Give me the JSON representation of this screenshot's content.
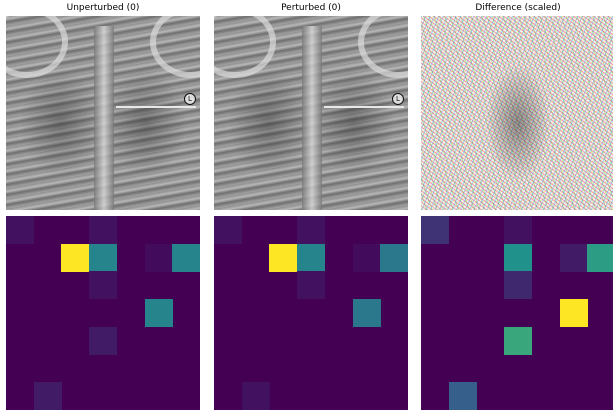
{
  "titles": {
    "unperturbed": "Unperturbed (0)",
    "perturbed": "Perturbed (0)",
    "difference": "Difference (scaled)"
  },
  "xray_marker": "L",
  "grid_size": 7,
  "colormap": {
    "low": "#440154",
    "mid_low": "#3b528b",
    "mid": "#21918c",
    "mid_high": "#22a884",
    "high": "#fde725"
  },
  "heatmaps": [
    {
      "name": "unperturbed",
      "cells": [
        {
          "row": 0,
          "col": 0,
          "value": 0.05
        },
        {
          "row": 0,
          "col": 3,
          "value": 0.05
        },
        {
          "row": 1,
          "col": 2,
          "value": 1.0
        },
        {
          "row": 1,
          "col": 3,
          "value": 0.45
        },
        {
          "row": 1,
          "col": 5,
          "value": 0.03
        },
        {
          "row": 1,
          "col": 6,
          "value": 0.45
        },
        {
          "row": 2,
          "col": 3,
          "value": 0.05
        },
        {
          "row": 3,
          "col": 5,
          "value": 0.45
        },
        {
          "row": 4,
          "col": 3,
          "value": 0.08
        },
        {
          "row": 6,
          "col": 1,
          "value": 0.08
        }
      ]
    },
    {
      "name": "perturbed",
      "cells": [
        {
          "row": 0,
          "col": 0,
          "value": 0.05
        },
        {
          "row": 0,
          "col": 3,
          "value": 0.05
        },
        {
          "row": 1,
          "col": 2,
          "value": 1.0
        },
        {
          "row": 1,
          "col": 3,
          "value": 0.45
        },
        {
          "row": 1,
          "col": 5,
          "value": 0.03
        },
        {
          "row": 1,
          "col": 6,
          "value": 0.4
        },
        {
          "row": 2,
          "col": 3,
          "value": 0.05
        },
        {
          "row": 3,
          "col": 5,
          "value": 0.4
        },
        {
          "row": 6,
          "col": 1,
          "value": 0.05
        }
      ]
    },
    {
      "name": "difference",
      "cells": [
        {
          "row": 0,
          "col": 0,
          "value": 0.15
        },
        {
          "row": 0,
          "col": 3,
          "value": 0.05
        },
        {
          "row": 1,
          "col": 3,
          "value": 0.5
        },
        {
          "row": 1,
          "col": 5,
          "value": 0.08
        },
        {
          "row": 1,
          "col": 6,
          "value": 0.55
        },
        {
          "row": 2,
          "col": 3,
          "value": 0.12
        },
        {
          "row": 3,
          "col": 5,
          "value": 1.0
        },
        {
          "row": 4,
          "col": 3,
          "value": 0.6
        },
        {
          "row": 6,
          "col": 1,
          "value": 0.3
        }
      ]
    }
  ]
}
